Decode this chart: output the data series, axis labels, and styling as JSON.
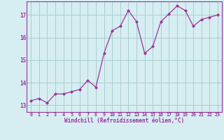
{
  "x": [
    0,
    1,
    2,
    3,
    4,
    5,
    6,
    7,
    8,
    9,
    10,
    11,
    12,
    13,
    14,
    15,
    16,
    17,
    18,
    19,
    20,
    21,
    22,
    23
  ],
  "y": [
    13.2,
    13.3,
    13.1,
    13.5,
    13.5,
    13.6,
    13.7,
    14.1,
    13.8,
    15.3,
    16.3,
    16.5,
    17.2,
    16.7,
    15.3,
    15.6,
    16.7,
    17.05,
    17.4,
    17.2,
    16.5,
    16.8,
    16.9,
    17.0
  ],
  "line_color": "#993399",
  "marker_color": "#993399",
  "bg_color": "#d6eef2",
  "grid_color": "#aacccc",
  "xlabel": "Windchill (Refroidissement éolien,°C)",
  "xlabel_color": "#993399",
  "xtick_labels": [
    "0",
    "1",
    "2",
    "3",
    "4",
    "5",
    "6",
    "7",
    "8",
    "9",
    "10",
    "11",
    "12",
    "13",
    "14",
    "15",
    "16",
    "17",
    "18",
    "19",
    "20",
    "21",
    "22",
    "23"
  ],
  "ytick_labels": [
    "13",
    "14",
    "15",
    "16",
    "17"
  ],
  "ytick_values": [
    13,
    14,
    15,
    16,
    17
  ],
  "ylim": [
    12.7,
    17.6
  ],
  "xlim": [
    -0.5,
    23.5
  ],
  "tick_color": "#993399",
  "spine_color": "#993399"
}
